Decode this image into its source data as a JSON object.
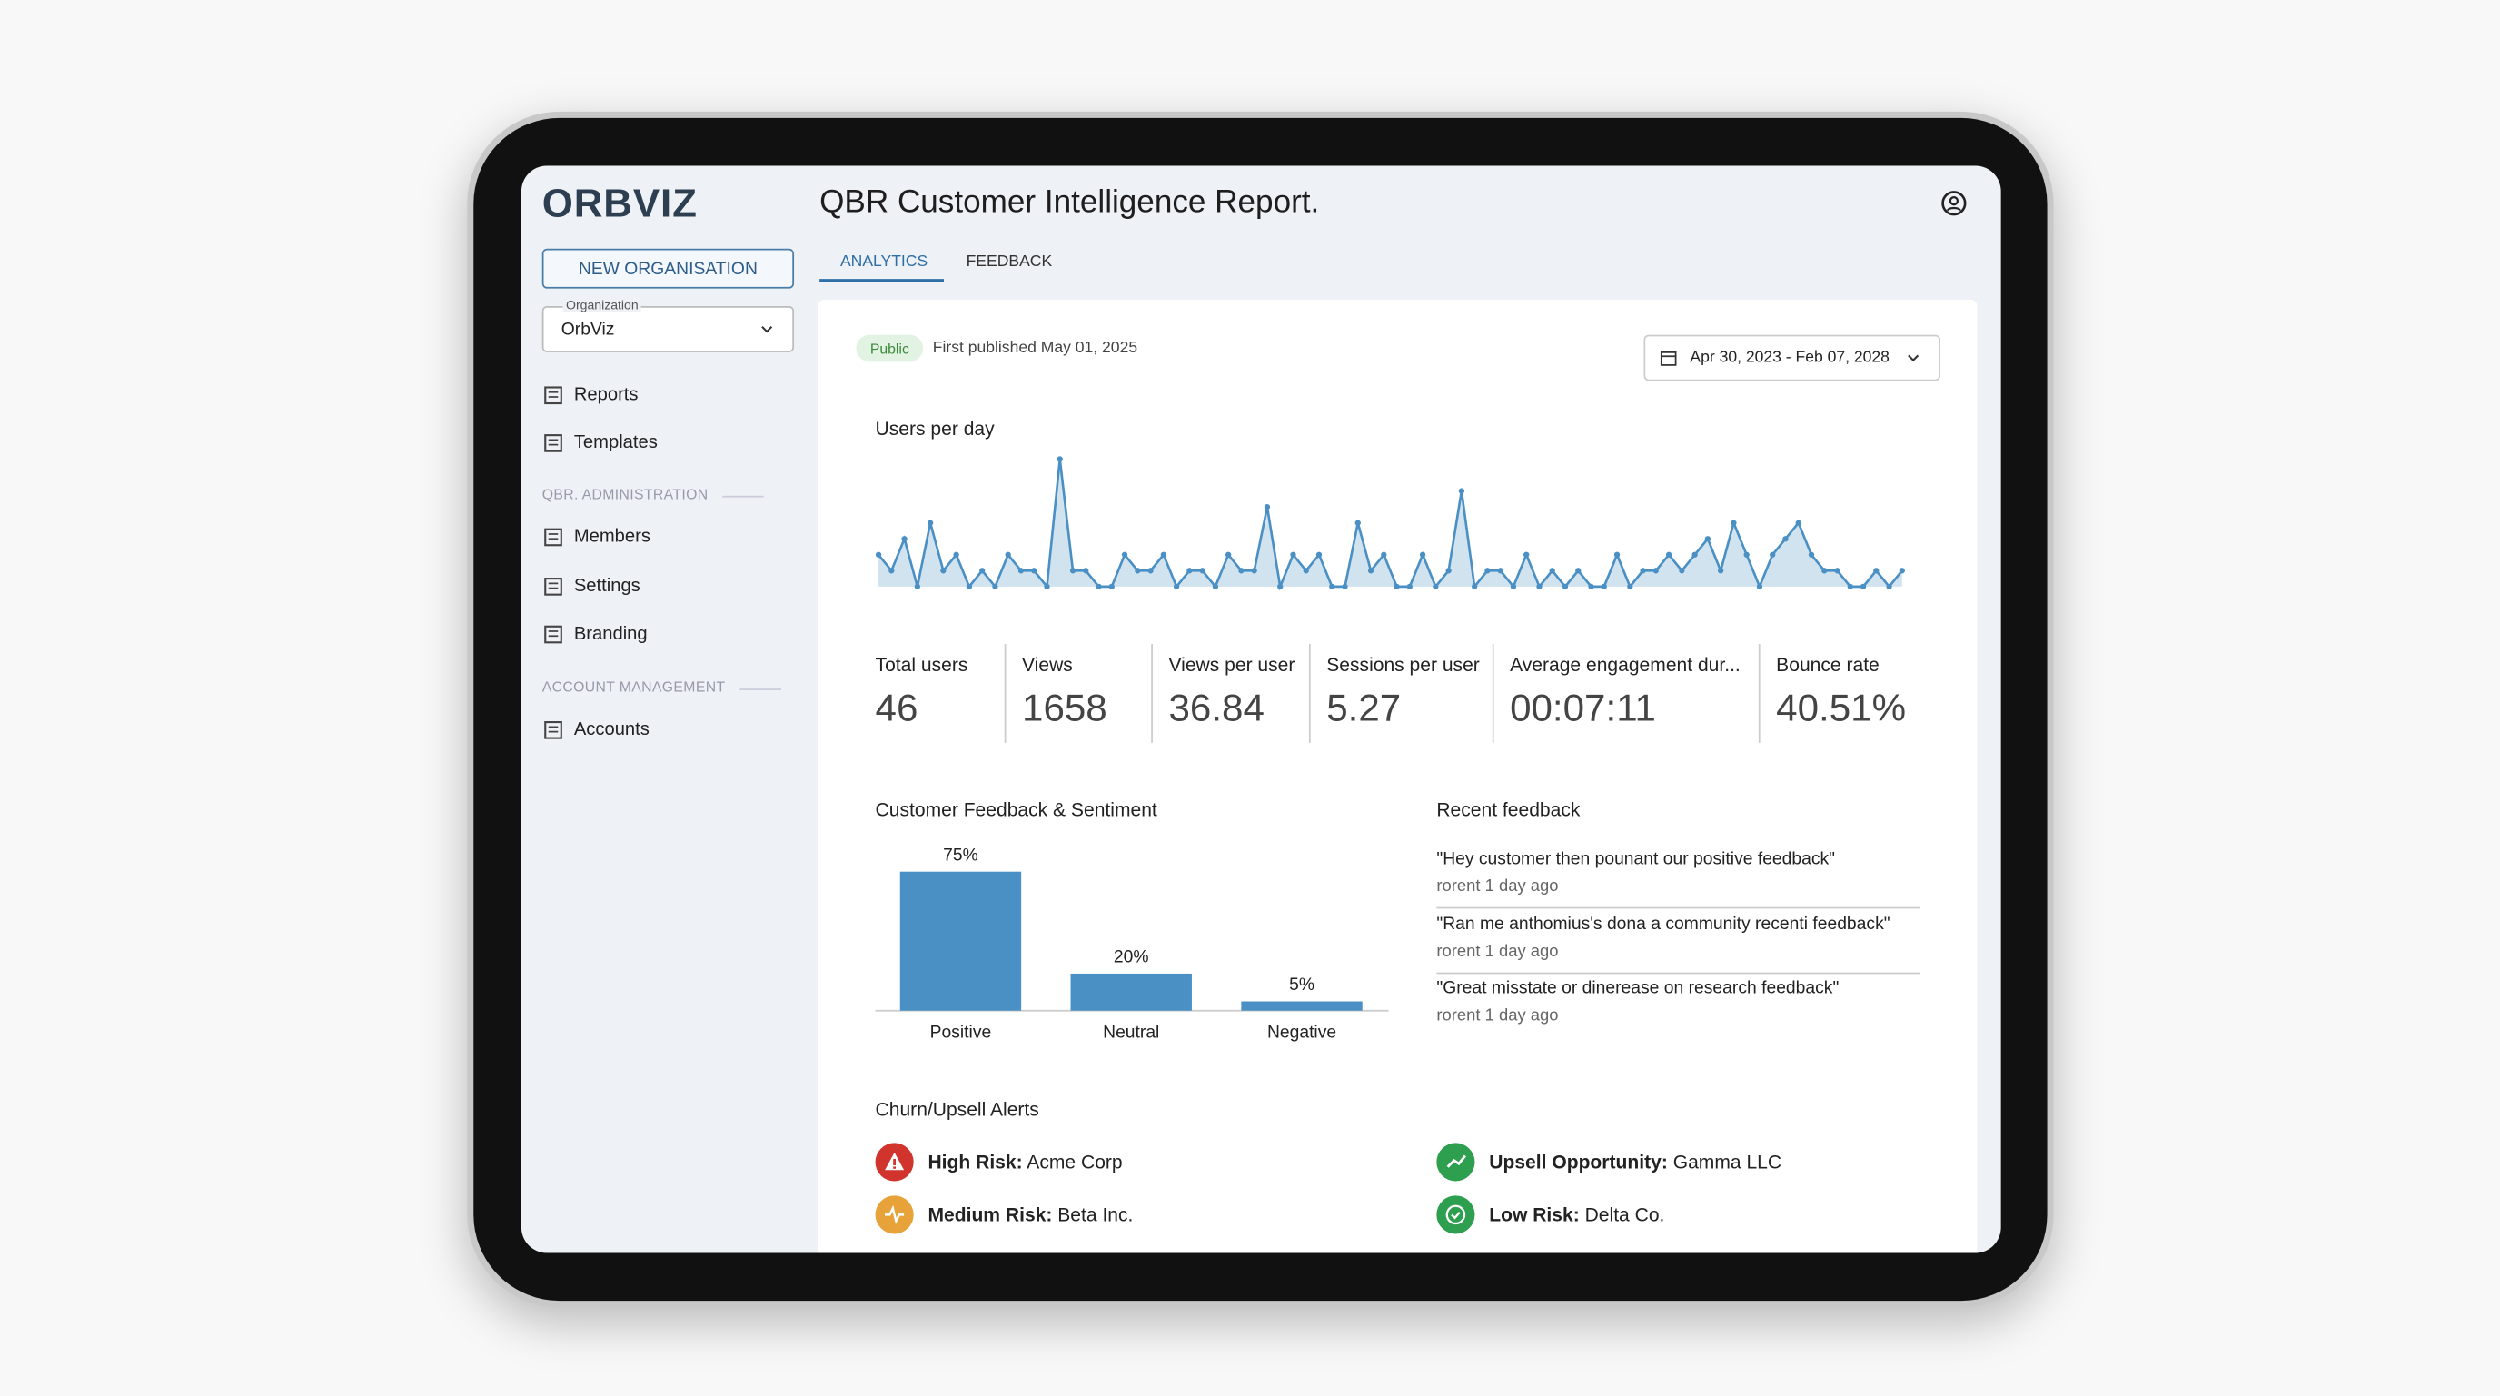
{
  "sidebar": {
    "logo": "ORBVIZ",
    "new_org_button": "NEW ORGANISATION",
    "org_label": "Organization",
    "org_value": "OrbViz",
    "nav": [
      "Reports",
      "Templates"
    ],
    "sections": [
      {
        "title": "QBR. ADMINISTRATION",
        "items": [
          "Members",
          "Settings",
          "Branding"
        ]
      },
      {
        "title": "ACCOUNT MANAGEMENT",
        "items": [
          "Accounts"
        ]
      }
    ]
  },
  "header": {
    "title": "QBR Customer Intelligence Report.",
    "tabs": [
      "ANALYTICS",
      "FEEDBACK"
    ]
  },
  "report": {
    "badge": "Public",
    "published": "First published May 01, 2025",
    "date_range": "Apr 30, 2023 - Feb 07, 2028"
  },
  "users_per_day": {
    "type": "line",
    "title": "Users per day",
    "color": "#4a90c4",
    "ylim": [
      0,
      8
    ],
    "values": [
      2,
      1,
      3,
      0,
      4,
      1,
      2,
      0,
      1,
      0,
      2,
      1,
      1,
      0,
      8,
      1,
      1,
      0,
      0,
      2,
      1,
      1,
      2,
      0,
      1,
      1,
      0,
      2,
      1,
      1,
      5,
      0,
      2,
      1,
      2,
      0,
      0,
      4,
      1,
      2,
      0,
      0,
      2,
      0,
      1,
      6,
      0,
      1,
      1,
      0,
      2,
      0,
      1,
      0,
      1,
      0,
      0,
      2,
      0,
      1,
      1,
      2,
      1,
      2,
      3,
      1,
      4,
      2,
      0,
      2,
      3,
      4,
      2,
      1,
      1,
      0,
      0,
      1,
      0,
      1
    ]
  },
  "metrics": [
    {
      "label": "Total users",
      "value": "46"
    },
    {
      "label": "Views",
      "value": "1658"
    },
    {
      "label": "Views per user",
      "value": "36.84"
    },
    {
      "label": "Sessions per user",
      "value": "5.27"
    },
    {
      "label": "Average engagement dur...",
      "value": "00:07:11"
    },
    {
      "label": "Bounce rate",
      "value": "40.51%"
    }
  ],
  "sentiment": {
    "type": "bar",
    "title": "Customer Feedback & Sentiment",
    "categories": [
      "Positive",
      "Neutral",
      "Negative"
    ],
    "values": [
      75,
      20,
      5
    ],
    "value_labels": [
      "75%",
      "20%",
      "5%"
    ],
    "ylim": [
      0,
      80
    ],
    "color": "#4a90c4"
  },
  "recent_feedback": {
    "title": "Recent feedback",
    "items": [
      {
        "quote": "\"Hey customer then pounant our positive feedback\"",
        "meta": "rorent 1 day ago"
      },
      {
        "quote": "\"Ran me anthomius's dona a community recenti feedback\"",
        "meta": "rorent 1 day ago"
      },
      {
        "quote": "\"Great misstate or dinerease on research feedback\"",
        "meta": "rorent 1 day ago"
      }
    ]
  },
  "alerts": {
    "title": "Churn/Upsell Alerts",
    "items": [
      {
        "label": "High Risk:",
        "account": "Acme Corp",
        "color": "#d0342c"
      },
      {
        "label": "Upsell Opportunity:",
        "account": "Gamma LLC",
        "color": "#2e9e4f"
      },
      {
        "label": "Medium Risk:",
        "account": "Beta Inc.",
        "color": "#e8a23a"
      },
      {
        "label": "Low Risk:",
        "account": "Delta Co.",
        "color": "#2e9e4f"
      }
    ]
  }
}
